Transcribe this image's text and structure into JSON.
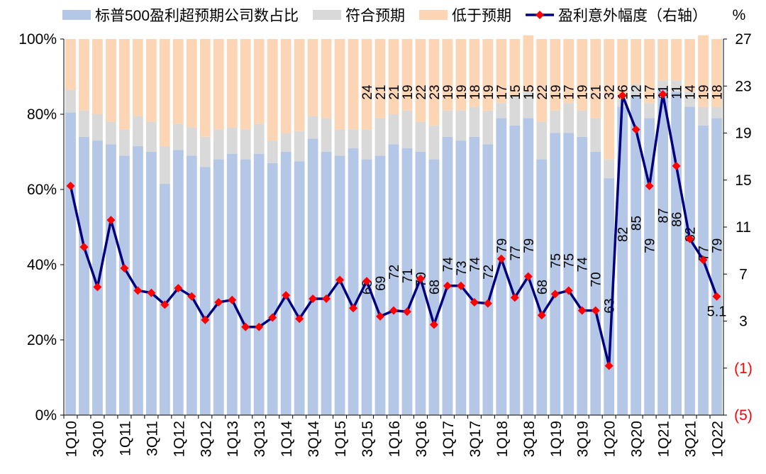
{
  "chart_data": {
    "type": "bar",
    "stacked": true,
    "normalized": true,
    "categories": [
      "1Q10",
      "2Q10",
      "3Q10",
      "4Q10",
      "1Q11",
      "2Q11",
      "3Q11",
      "4Q11",
      "1Q12",
      "2Q12",
      "3Q12",
      "4Q12",
      "1Q13",
      "2Q13",
      "3Q13",
      "4Q13",
      "1Q14",
      "2Q14",
      "3Q14",
      "4Q14",
      "1Q15",
      "2Q15",
      "3Q15",
      "4Q15",
      "1Q16",
      "2Q16",
      "3Q16",
      "4Q16",
      "1Q17",
      "2Q17",
      "3Q17",
      "4Q17",
      "1Q18",
      "2Q18",
      "3Q18",
      "4Q18",
      "1Q19",
      "2Q19",
      "3Q19",
      "4Q19",
      "1Q20",
      "2Q20",
      "3Q20",
      "4Q20",
      "1Q21",
      "2Q21",
      "3Q21",
      "4Q21",
      "1Q22"
    ],
    "x_tick_labels": [
      "1Q10",
      "3Q10",
      "1Q11",
      "3Q11",
      "1Q12",
      "3Q12",
      "1Q13",
      "3Q13",
      "1Q14",
      "3Q14",
      "1Q15",
      "3Q15",
      "1Q16",
      "3Q16",
      "1Q17",
      "3Q17",
      "1Q18",
      "3Q18",
      "1Q19",
      "3Q19",
      "1Q20",
      "3Q20",
      "1Q21",
      "3Q21",
      "1Q22"
    ],
    "series": [
      {
        "name": "标普500盈利超预期公司数占比",
        "color": "#b4c7e7",
        "values": [
          80.5,
          74,
          73,
          72,
          69,
          71.5,
          70,
          61.5,
          70.5,
          69,
          66,
          68,
          69.5,
          68,
          69.5,
          67,
          70,
          67.5,
          73.5,
          70,
          69,
          71,
          68,
          69,
          72,
          71,
          70,
          68,
          74,
          73,
          74,
          72,
          79,
          77,
          79,
          68,
          75,
          75,
          74,
          70,
          63,
          82,
          85,
          79,
          87,
          86,
          82,
          77,
          79
        ],
        "labels": {
          "22": "68",
          "23": "69",
          "24": "72",
          "25": "71",
          "26": "70",
          "27": "68",
          "28": "74",
          "29": "73",
          "30": "74",
          "31": "72",
          "32": "79",
          "33": "77",
          "34": "79",
          "35": "68",
          "36": "75",
          "37": "75",
          "38": "74",
          "39": "70",
          "40": "63",
          "41": "82",
          "42": "85",
          "43": "79",
          "44": "87",
          "45": "86",
          "46": "82",
          "47": "77",
          "48": "79"
        }
      },
      {
        "name": "符合预期",
        "color": "#d9d9d9",
        "values": [
          6,
          7,
          7,
          6,
          7,
          8,
          8,
          10,
          7,
          7.5,
          8,
          8,
          7,
          8,
          8,
          6,
          5,
          8,
          6,
          9,
          7,
          5,
          8,
          10,
          8,
          10,
          8,
          9,
          7,
          8,
          8,
          9,
          4,
          8,
          7,
          10,
          6,
          8,
          7,
          9,
          5,
          2,
          3,
          4,
          2,
          3,
          4,
          5,
          3
        ]
      },
      {
        "name": "低于预期",
        "color": "#fcd5b4",
        "values": [
          13.5,
          19,
          20,
          22,
          24,
          20.5,
          22,
          28.5,
          22.5,
          23.5,
          26,
          24,
          23.5,
          24,
          22.5,
          27,
          25,
          24.5,
          20.5,
          21,
          24,
          24,
          24,
          21,
          20,
          19,
          22,
          23,
          19,
          19,
          18,
          19,
          17,
          15,
          15,
          22,
          19,
          17,
          19,
          21,
          32,
          16,
          12,
          17,
          11,
          11,
          14,
          19,
          18
        ],
        "labels": {
          "22": "24",
          "23": "21",
          "24": "21",
          "25": "19",
          "26": "22",
          "27": "23",
          "28": "19",
          "29": "19",
          "30": "18",
          "31": "19",
          "32": "17",
          "33": "15",
          "34": "15",
          "35": "22",
          "36": "19",
          "37": "17",
          "38": "19",
          "39": "21",
          "40": "32",
          "41": "16",
          "42": "12",
          "43": "17",
          "44": "11",
          "45": "11",
          "46": "14",
          "47": "19",
          "48": "18"
        }
      },
      {
        "name": "盈利意外幅度（右轴）",
        "type": "line",
        "axis": "right",
        "color": "#00007f",
        "marker_color": "#ff0000",
        "values": [
          14.5,
          9.3,
          5.9,
          11.6,
          7.5,
          5.6,
          5.4,
          4.4,
          5.8,
          5.1,
          3.1,
          4.6,
          4.8,
          2.5,
          2.5,
          3.3,
          5.2,
          3.2,
          4.9,
          4.9,
          6.5,
          4.1,
          6.4,
          3.4,
          3.9,
          3.8,
          6.6,
          2.7,
          6,
          6,
          4.6,
          4.5,
          8.3,
          5,
          6.8,
          3.5,
          5.3,
          5.6,
          3.9,
          3.9,
          -0.8,
          22.2,
          19.3,
          14.5,
          22.3,
          16.2,
          10,
          8.2,
          5.1
        ],
        "labels": {
          "48": "5.1"
        }
      }
    ],
    "y_left": {
      "ylim": [
        0,
        100
      ],
      "ticks": [
        0,
        20,
        40,
        60,
        80,
        100
      ],
      "tick_labels": [
        "0%",
        "20%",
        "40%",
        "60%",
        "80%",
        "100%"
      ]
    },
    "y_right": {
      "unit_label": "%",
      "ylim": [
        -5,
        27
      ],
      "ticks": [
        -5,
        -1,
        3,
        7,
        11,
        15,
        19,
        23,
        27
      ],
      "tick_labels": [
        "(5)",
        "(1)",
        "3",
        "7",
        "11",
        "15",
        "19",
        "23",
        "27"
      ],
      "negative_color": "#ff0000"
    },
    "legend": {
      "position": "top"
    },
    "grid": false
  }
}
